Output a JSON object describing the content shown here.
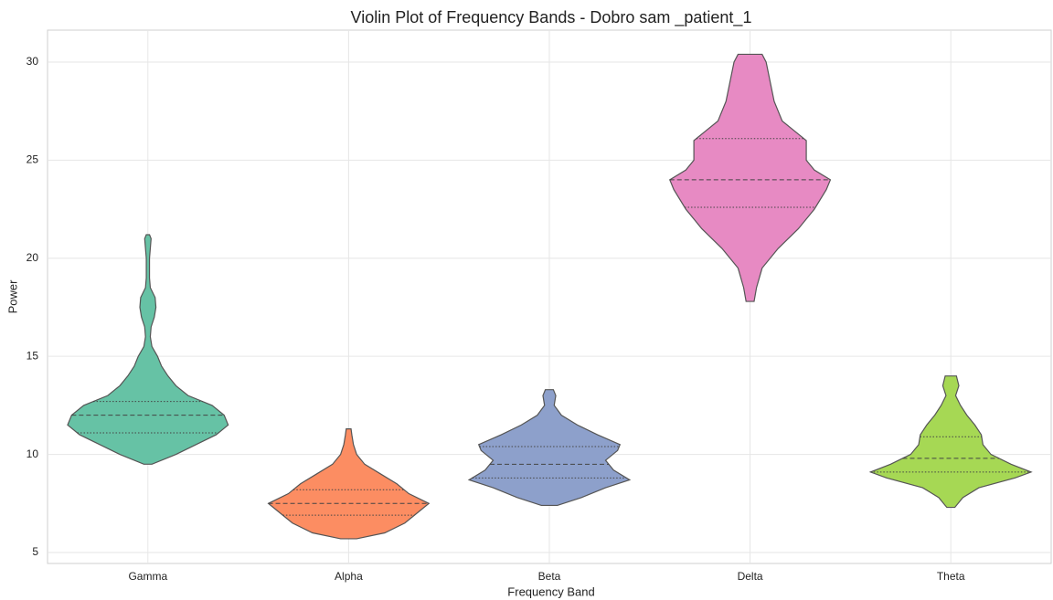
{
  "chart_data": {
    "type": "violin",
    "title": "Violin Plot of Frequency Bands - Dobro sam _patient_1",
    "x_label": "Frequency Band",
    "y_label": "Power",
    "categories": [
      "Gamma",
      "Alpha",
      "Beta",
      "Delta",
      "Theta"
    ],
    "ylim": [
      4.44,
      31.63
    ],
    "yticks": [
      5,
      10,
      15,
      20,
      25,
      30
    ],
    "grid": true,
    "violins": [
      {
        "color": "#66c2a5",
        "q1": 11.1,
        "median": 12.0,
        "q3": 12.7,
        "profile_y": [
          9.5,
          10,
          10.5,
          11,
          11.5,
          12,
          12.5,
          13,
          13.5,
          14,
          14.5,
          15,
          15.5,
          16,
          16.5,
          17,
          17.5,
          18,
          18.5,
          19,
          19.5,
          20,
          20.5,
          21,
          21.2
        ],
        "profile_width": [
          0.05,
          0.35,
          0.6,
          0.85,
          1.0,
          0.95,
          0.8,
          0.5,
          0.35,
          0.25,
          0.17,
          0.12,
          0.05,
          0.03,
          0.04,
          0.08,
          0.1,
          0.09,
          0.03,
          0.02,
          0.02,
          0.02,
          0.03,
          0.04,
          0.02
        ]
      },
      {
        "color": "#fc8d62",
        "q1": 6.9,
        "median": 7.5,
        "q3": 8.2,
        "profile_y": [
          5.7,
          6,
          6.5,
          7,
          7.5,
          8,
          8.5,
          9,
          9.5,
          10,
          10.5,
          11,
          11.3
        ],
        "profile_width": [
          0.1,
          0.45,
          0.7,
          0.85,
          1.0,
          0.75,
          0.6,
          0.4,
          0.2,
          0.1,
          0.06,
          0.04,
          0.03
        ]
      },
      {
        "color": "#8da0cb",
        "q1": 8.8,
        "median": 9.5,
        "q3": 10.4,
        "profile_y": [
          7.4,
          7.8,
          8.3,
          8.7,
          9.2,
          9.7,
          10.2,
          10.5,
          11,
          11.5,
          12,
          12.5,
          13,
          13.3
        ],
        "profile_width": [
          0.1,
          0.4,
          0.7,
          1.0,
          0.8,
          0.7,
          0.85,
          0.88,
          0.6,
          0.35,
          0.15,
          0.06,
          0.08,
          0.05
        ]
      },
      {
        "color": "#e78ac3",
        "q1": 22.6,
        "median": 24.0,
        "q3": 26.1,
        "profile_y": [
          17.8,
          18.5,
          19.5,
          20.5,
          21.5,
          22.5,
          23.5,
          24,
          24.5,
          25,
          25.5,
          26,
          26.5,
          27,
          28,
          29,
          30,
          30.4
        ],
        "profile_width": [
          0.05,
          0.08,
          0.15,
          0.35,
          0.6,
          0.8,
          0.95,
          1.0,
          0.8,
          0.7,
          0.7,
          0.7,
          0.55,
          0.4,
          0.3,
          0.25,
          0.2,
          0.15
        ]
      },
      {
        "color": "#a6d854",
        "q1": 9.1,
        "median": 9.8,
        "q3": 10.9,
        "profile_y": [
          7.3,
          7.8,
          8.3,
          8.8,
          9.1,
          9.5,
          10,
          10.5,
          11,
          11.5,
          12,
          12.5,
          13,
          13.5,
          14
        ],
        "profile_width": [
          0.05,
          0.15,
          0.35,
          0.8,
          1.0,
          0.75,
          0.5,
          0.4,
          0.38,
          0.3,
          0.2,
          0.12,
          0.06,
          0.1,
          0.07
        ]
      }
    ]
  }
}
